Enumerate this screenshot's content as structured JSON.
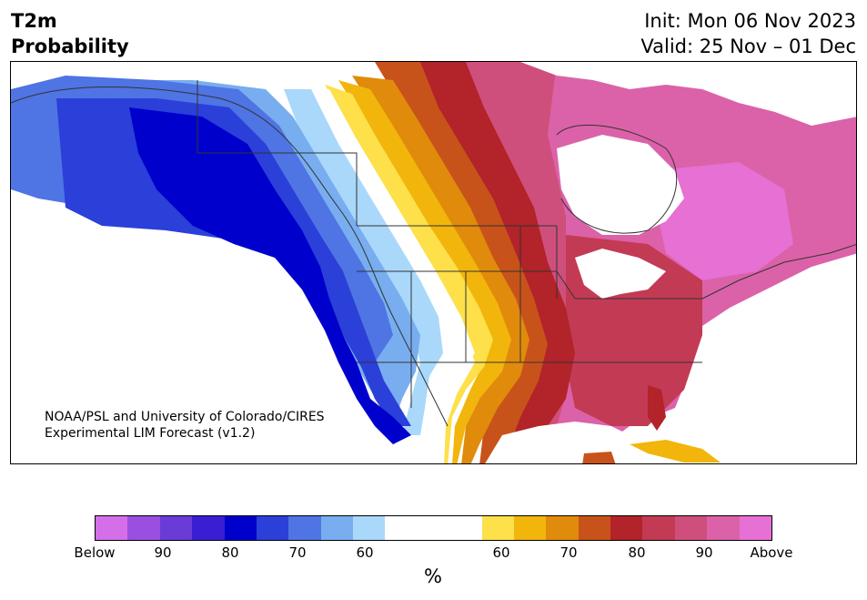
{
  "header": {
    "variable": "T2m",
    "subtitle": "Probability",
    "init": "Init: Mon 06 Nov 2023",
    "valid": "Valid: 25 Nov – 01 Dec"
  },
  "credit": {
    "line1": "NOAA/PSL and University of Colorado/CIRES",
    "line2": "Experimental LIM Forecast (v1.2)"
  },
  "colorbar": {
    "unit": "%",
    "ticks": [
      "Below",
      "90",
      "80",
      "70",
      "60",
      "60",
      "70",
      "80",
      "90",
      "Above"
    ],
    "below_colors": [
      "#d56fe9",
      "#9b4fe0",
      "#6a3bd7",
      "#3a1ed4",
      "#0000cd",
      "#2b3fd9",
      "#4f74e3",
      "#78aef0",
      "#a9d8fb"
    ],
    "near_normal_color": "#ffffff",
    "above_colors": [
      "#fde04a",
      "#f2b50c",
      "#e08b0b",
      "#c8531a",
      "#b2232a",
      "#c33a55",
      "#cf4f7c",
      "#db62a8",
      "#e670d4"
    ]
  },
  "map": {
    "region": "North America",
    "below_side": "west",
    "above_side": "east"
  }
}
